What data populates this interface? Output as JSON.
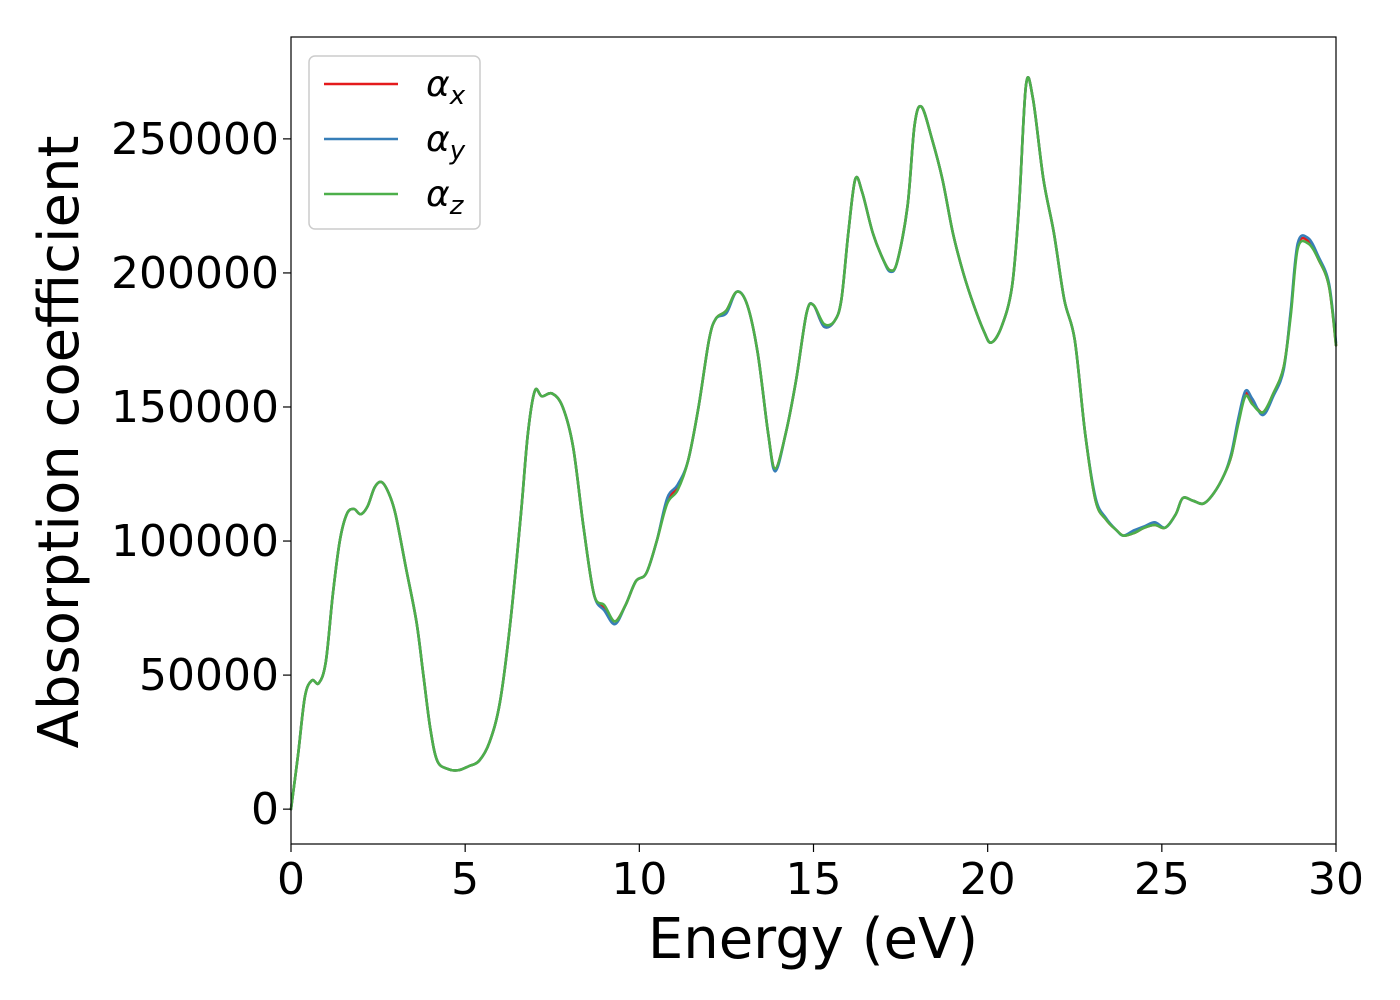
{
  "chart_data": {
    "type": "line",
    "title": "",
    "xlabel": "Energy (eV)",
    "ylabel": "Absorption coefficient",
    "xlim": [
      0,
      30
    ],
    "ylim": [
      -13000,
      288000
    ],
    "xticks": [
      0,
      5,
      10,
      15,
      20,
      25,
      30
    ],
    "yticks": [
      0,
      50000,
      100000,
      150000,
      200000,
      250000
    ],
    "xtick_labels": [
      "0",
      "5",
      "10",
      "15",
      "20",
      "25",
      "30"
    ],
    "ytick_labels": [
      "0",
      "50000",
      "100000",
      "150000",
      "200000",
      "250000"
    ],
    "grid": false,
    "legend_position": "top-left",
    "series": [
      {
        "name": "αx",
        "label_base": "α",
        "label_sub": "x",
        "color": "#e41a1c",
        "x": [
          0,
          0.2,
          0.4,
          0.6,
          0.8,
          1.0,
          1.2,
          1.4,
          1.6,
          1.8,
          2.0,
          2.2,
          2.4,
          2.6,
          2.8,
          3.0,
          3.3,
          3.6,
          3.8,
          4.0,
          4.2,
          4.5,
          4.8,
          5.1,
          5.4,
          5.7,
          6.0,
          6.3,
          6.6,
          6.8,
          7.0,
          7.2,
          7.5,
          7.8,
          8.1,
          8.4,
          8.7,
          9.0,
          9.3,
          9.6,
          9.9,
          10.2,
          10.5,
          10.8,
          11.1,
          11.4,
          11.7,
          12.0,
          12.2,
          12.5,
          12.8,
          13.1,
          13.4,
          13.7,
          13.9,
          14.2,
          14.5,
          14.8,
          15.0,
          15.3,
          15.6,
          15.8,
          16.0,
          16.2,
          16.4,
          16.7,
          17.0,
          17.2,
          17.4,
          17.7,
          17.9,
          18.1,
          18.4,
          18.7,
          19.0,
          19.3,
          19.6,
          19.9,
          20.1,
          20.4,
          20.7,
          20.9,
          21.1,
          21.3,
          21.6,
          21.9,
          22.2,
          22.5,
          22.8,
          23.1,
          23.4,
          23.7,
          23.9,
          24.2,
          24.5,
          24.8,
          25.1,
          25.4,
          25.6,
          25.9,
          26.2,
          26.5,
          26.8,
          27.0,
          27.2,
          27.4,
          27.6,
          27.9,
          28.2,
          28.5,
          28.7,
          28.9,
          29.2,
          29.5,
          29.8,
          30.0
        ],
        "y": [
          0,
          20000,
          42000,
          48000,
          47000,
          55000,
          80000,
          100000,
          110000,
          112000,
          110000,
          113000,
          120000,
          122000,
          118000,
          110000,
          90000,
          70000,
          50000,
          30000,
          18000,
          15000,
          14500,
          16000,
          18000,
          25000,
          40000,
          70000,
          110000,
          140000,
          156000,
          154000,
          155000,
          150000,
          135000,
          105000,
          80000,
          75000,
          70000,
          76000,
          85000,
          88000,
          100000,
          115000,
          120000,
          130000,
          150000,
          175000,
          183000,
          186000,
          193000,
          188000,
          170000,
          140000,
          127000,
          140000,
          160000,
          185000,
          188000,
          180000,
          182000,
          190000,
          215000,
          235000,
          230000,
          215000,
          205000,
          201000,
          204000,
          225000,
          255000,
          262000,
          250000,
          235000,
          215000,
          200000,
          188000,
          178000,
          174000,
          180000,
          195000,
          225000,
          270000,
          265000,
          235000,
          215000,
          190000,
          175000,
          140000,
          115000,
          108000,
          104000,
          102000,
          103000,
          105000,
          106000,
          105000,
          110000,
          116000,
          115000,
          114000,
          118000,
          125000,
          132000,
          145000,
          155000,
          152000,
          148000,
          155000,
          165000,
          185000,
          210000,
          212000,
          205000,
          195000,
          173000
        ]
      },
      {
        "name": "αy",
        "label_base": "α",
        "label_sub": "y",
        "color": "#377eb8",
        "x": [
          0,
          0.2,
          0.4,
          0.6,
          0.8,
          1.0,
          1.2,
          1.4,
          1.6,
          1.8,
          2.0,
          2.2,
          2.4,
          2.6,
          2.8,
          3.0,
          3.3,
          3.6,
          3.8,
          4.0,
          4.2,
          4.5,
          4.8,
          5.1,
          5.4,
          5.7,
          6.0,
          6.3,
          6.6,
          6.8,
          7.0,
          7.2,
          7.5,
          7.8,
          8.1,
          8.4,
          8.7,
          9.0,
          9.3,
          9.6,
          9.9,
          10.2,
          10.5,
          10.8,
          11.1,
          11.4,
          11.7,
          12.0,
          12.2,
          12.5,
          12.8,
          13.1,
          13.4,
          13.7,
          13.9,
          14.2,
          14.5,
          14.8,
          15.0,
          15.3,
          15.6,
          15.8,
          16.0,
          16.2,
          16.4,
          16.7,
          17.0,
          17.2,
          17.4,
          17.7,
          17.9,
          18.1,
          18.4,
          18.7,
          19.0,
          19.3,
          19.6,
          19.9,
          20.1,
          20.4,
          20.7,
          20.9,
          21.1,
          21.3,
          21.6,
          21.9,
          22.2,
          22.5,
          22.8,
          23.1,
          23.4,
          23.7,
          23.9,
          24.2,
          24.5,
          24.8,
          25.1,
          25.4,
          25.6,
          25.9,
          26.2,
          26.5,
          26.8,
          27.0,
          27.2,
          27.4,
          27.6,
          27.9,
          28.2,
          28.5,
          28.7,
          28.9,
          29.2,
          29.5,
          29.8,
          30.0
        ],
        "y": [
          0,
          20000,
          42000,
          48000,
          47000,
          55000,
          80000,
          100000,
          110000,
          112000,
          110000,
          113000,
          120000,
          122000,
          118000,
          110000,
          90000,
          70000,
          50000,
          30000,
          18000,
          15000,
          14500,
          16000,
          18000,
          25000,
          40000,
          70000,
          110000,
          140000,
          156000,
          154000,
          155000,
          150000,
          135000,
          105000,
          80000,
          74000,
          69000,
          76000,
          85000,
          88000,
          100000,
          116000,
          121000,
          130000,
          150000,
          175000,
          183000,
          185000,
          193000,
          188000,
          170000,
          140000,
          126000,
          140000,
          160000,
          185000,
          188000,
          180000,
          182000,
          190000,
          215000,
          235000,
          230000,
          215000,
          205000,
          200500,
          204000,
          225000,
          255000,
          262000,
          250000,
          235000,
          215000,
          200000,
          188000,
          178000,
          174000,
          180000,
          195000,
          225000,
          270000,
          265000,
          235000,
          215000,
          190000,
          175000,
          140000,
          116000,
          108500,
          104000,
          102000,
          104000,
          105500,
          107000,
          105000,
          110000,
          116000,
          115000,
          114000,
          118000,
          125000,
          133000,
          146000,
          156000,
          153000,
          147000,
          154000,
          164000,
          186000,
          211000,
          213000,
          206000,
          196000,
          174000
        ]
      },
      {
        "name": "αz",
        "label_base": "α",
        "label_sub": "z",
        "color": "#4daf4a",
        "x": [
          0,
          0.2,
          0.4,
          0.6,
          0.8,
          1.0,
          1.2,
          1.4,
          1.6,
          1.8,
          2.0,
          2.2,
          2.4,
          2.6,
          2.8,
          3.0,
          3.3,
          3.6,
          3.8,
          4.0,
          4.2,
          4.5,
          4.8,
          5.1,
          5.4,
          5.7,
          6.0,
          6.3,
          6.6,
          6.8,
          7.0,
          7.2,
          7.5,
          7.8,
          8.1,
          8.4,
          8.7,
          9.0,
          9.3,
          9.6,
          9.9,
          10.2,
          10.5,
          10.8,
          11.1,
          11.4,
          11.7,
          12.0,
          12.2,
          12.5,
          12.8,
          13.1,
          13.4,
          13.7,
          13.9,
          14.2,
          14.5,
          14.8,
          15.0,
          15.3,
          15.6,
          15.8,
          16.0,
          16.2,
          16.4,
          16.7,
          17.0,
          17.2,
          17.4,
          17.7,
          17.9,
          18.1,
          18.4,
          18.7,
          19.0,
          19.3,
          19.6,
          19.9,
          20.1,
          20.4,
          20.7,
          20.9,
          21.1,
          21.3,
          21.6,
          21.9,
          22.2,
          22.5,
          22.8,
          23.1,
          23.4,
          23.7,
          23.9,
          24.2,
          24.5,
          24.8,
          25.1,
          25.4,
          25.6,
          25.9,
          26.2,
          26.5,
          26.8,
          27.0,
          27.2,
          27.4,
          27.6,
          27.9,
          28.2,
          28.5,
          28.7,
          28.9,
          29.2,
          29.5,
          29.8,
          30.0
        ],
        "y": [
          0,
          20000,
          42000,
          48000,
          47000,
          55000,
          80000,
          100000,
          110000,
          112000,
          110000,
          113000,
          120000,
          122000,
          118000,
          110000,
          90000,
          70000,
          50000,
          30000,
          18000,
          15000,
          14500,
          16000,
          18000,
          25000,
          40000,
          70000,
          110000,
          140000,
          156000,
          154000,
          155000,
          150000,
          135000,
          105000,
          80000,
          76000,
          70000,
          76000,
          85000,
          88000,
          100000,
          114000,
          119000,
          130000,
          150000,
          175000,
          183000,
          186000,
          193000,
          188000,
          170000,
          140000,
          127000,
          140000,
          160000,
          185000,
          188000,
          181000,
          182000,
          190000,
          215000,
          235000,
          230000,
          215000,
          205000,
          201000,
          204000,
          225000,
          255000,
          262000,
          250000,
          235000,
          215000,
          200000,
          188000,
          178000,
          174000,
          180000,
          195000,
          225000,
          270000,
          265000,
          235000,
          215000,
          190000,
          175000,
          140000,
          115000,
          108000,
          104000,
          102000,
          103000,
          105000,
          106000,
          105000,
          110000,
          116000,
          115000,
          114000,
          118000,
          125000,
          132000,
          144000,
          154000,
          151000,
          148000,
          155000,
          165000,
          184000,
          209000,
          211000,
          205000,
          195000,
          173000
        ]
      }
    ]
  }
}
